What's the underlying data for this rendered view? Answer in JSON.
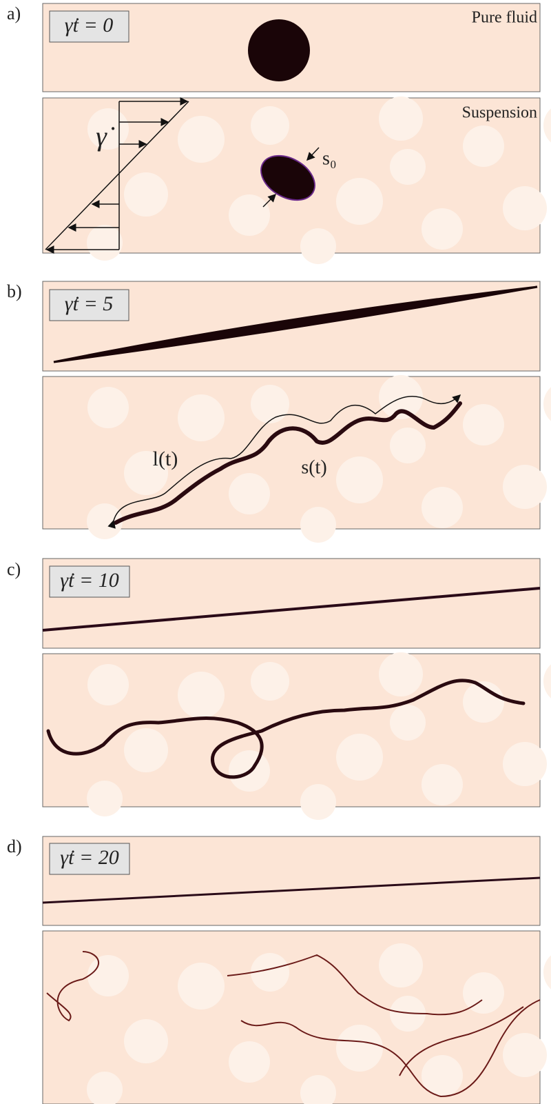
{
  "panels": [
    {
      "label": "a)",
      "time_label": "γ̇t = 0",
      "pure_label": "Pure fluid",
      "suspension_label": "Suspension",
      "shear_label": "γ̇",
      "thickness_label": "s₀"
    },
    {
      "label": "b)",
      "time_label": "γ̇t = 5",
      "length_label": "l(t)",
      "thickness_label": "s(t)"
    },
    {
      "label": "c)",
      "time_label": "γ̇t = 10"
    },
    {
      "label": "d)",
      "time_label": "γ̇t = 20"
    }
  ]
}
